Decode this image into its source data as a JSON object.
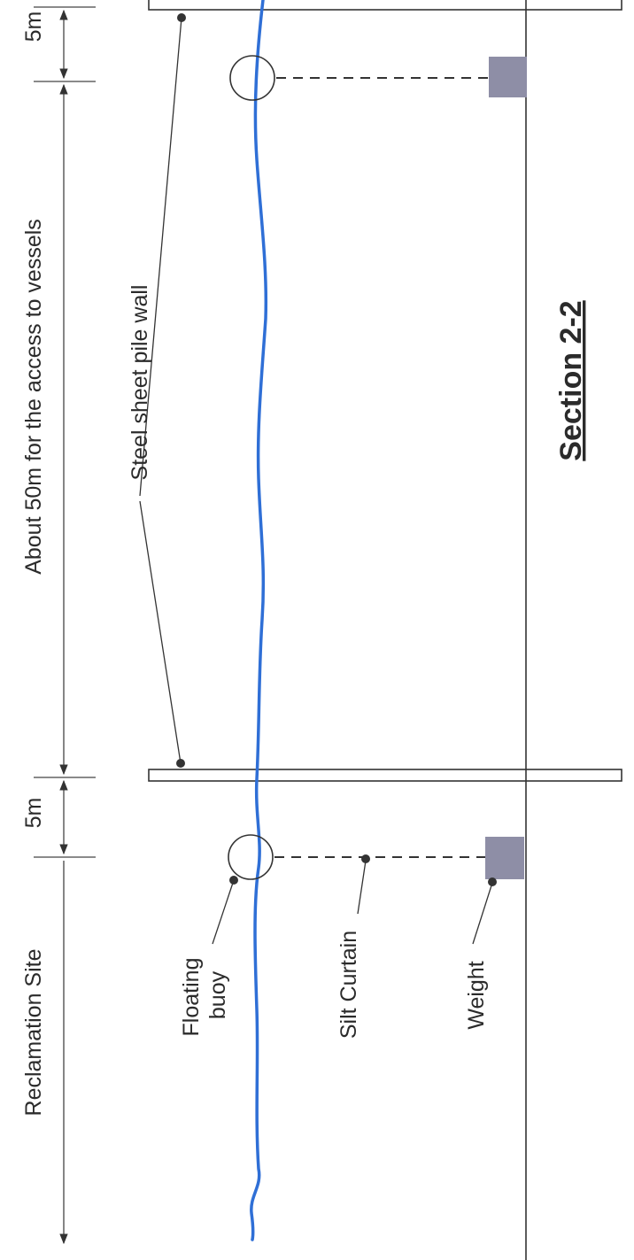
{
  "labels": {
    "dim_top_5m": "5m",
    "dim_middle": "About 50m for the access to vessels",
    "dim_bottom_5m": "5m",
    "reclamation_site": "Reclamation Site",
    "steel_wall": "Steel sheet pile wall",
    "floating": "Floating",
    "buoy": "buoy",
    "silt_curtain": "Silt Curtain",
    "weight": "Weight",
    "section_title": "Section 2-2"
  },
  "colors": {
    "water": "#2f6fd6",
    "weight": "#8e8ea6",
    "line": "#333333"
  }
}
